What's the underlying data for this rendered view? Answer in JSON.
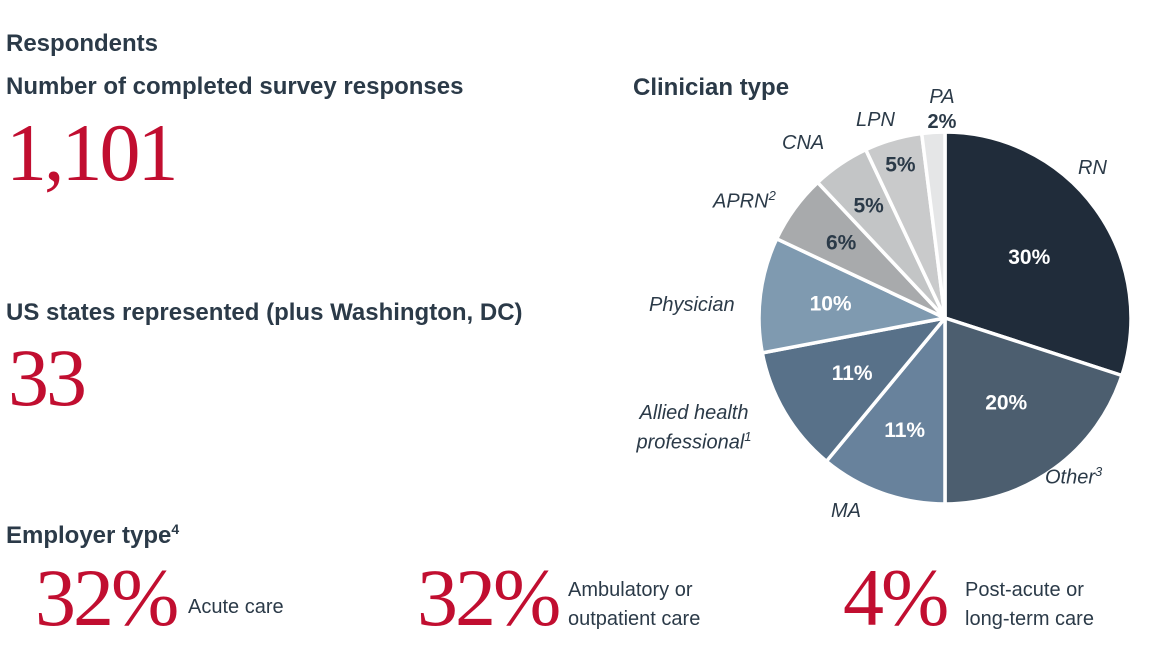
{
  "header": {
    "title": "Respondents"
  },
  "colors": {
    "accent_red": "#c10e30",
    "text_navy": "#2b3a48",
    "background": "#ffffff",
    "slice_separator": "#ffffff"
  },
  "stats": [
    {
      "label": "Number of completed survey responses",
      "value": "1,101"
    },
    {
      "label": "US states represented (plus Washington, DC)",
      "value": "33"
    }
  ],
  "employer": {
    "heading": "Employer type",
    "heading_sup": "4",
    "items": [
      {
        "value": "32%",
        "label_lines": [
          "Acute care"
        ]
      },
      {
        "value": "32%",
        "label_lines": [
          "Ambulatory or",
          "outpatient care"
        ]
      },
      {
        "value": "4%",
        "label_lines": [
          "Post-acute or",
          "long-term care"
        ]
      }
    ]
  },
  "chart_data": {
    "type": "pie",
    "title": "Clinician type",
    "unit": "percent of respondents",
    "start_angle_deg": 0,
    "direction": "clockwise",
    "legend_position": "outside-labels",
    "slices": [
      {
        "label": "RN",
        "sup": "",
        "value": 30,
        "pct_label": "30%",
        "color": "#202c3a",
        "pct_color": "#ffffff",
        "pct_r": 0.56
      },
      {
        "label": "Other",
        "sup": "3",
        "value": 20,
        "pct_label": "20%",
        "color": "#4c5e6f",
        "pct_color": "#ffffff",
        "pct_r": 0.56
      },
      {
        "label": "MA",
        "sup": "",
        "value": 11,
        "pct_label": "11%",
        "color": "#68829c",
        "pct_color": "#ffffff",
        "pct_r": 0.64
      },
      {
        "label": "Allied health professional",
        "sup": "1",
        "label_lines": [
          "Allied health",
          "professional"
        ],
        "value": 11,
        "pct_label": "11%",
        "color": "#587189",
        "pct_color": "#ffffff",
        "pct_r": 0.58
      },
      {
        "label": "Physician",
        "sup": "",
        "value": 10,
        "pct_label": "10%",
        "color": "#7f9ab0",
        "pct_color": "#ffffff",
        "pct_r": 0.62
      },
      {
        "label": "APRN",
        "sup": "2",
        "value": 6,
        "pct_label": "6%",
        "color": "#a8aaac",
        "pct_color": "#2b3a48",
        "pct_r": 0.69
      },
      {
        "label": "CNA",
        "sup": "",
        "value": 5,
        "pct_label": "5%",
        "color": "#c3c5c6",
        "pct_color": "#2b3a48",
        "pct_r": 0.73
      },
      {
        "label": "LPN",
        "sup": "",
        "value": 5,
        "pct_label": "5%",
        "color": "#c9cacb",
        "pct_color": "#2b3a48",
        "pct_r": 0.86
      },
      {
        "label": "PA",
        "sup": "",
        "value": 2,
        "pct_label": "2%",
        "color": "#e5e6e7",
        "pct_color": "#2b3a48",
        "pct_r": null
      }
    ]
  }
}
